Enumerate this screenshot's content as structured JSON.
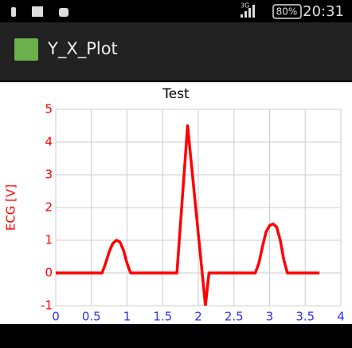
{
  "status_bar": {
    "network": "3G",
    "battery": "80%",
    "time": "20:31"
  },
  "app_bar": {
    "title": "Y_X_Plot"
  },
  "chart_data": {
    "type": "line",
    "title": "Test",
    "y_label": "ECG [V]",
    "x": [
      0,
      0.65,
      0.7,
      0.75,
      0.8,
      0.85,
      0.9,
      0.95,
      1.0,
      1.05,
      1.7,
      1.85,
      2.1,
      2.15,
      2.8,
      2.85,
      2.9,
      2.95,
      3.0,
      3.05,
      3.1,
      3.15,
      3.2,
      3.25,
      3.7
    ],
    "series": [
      {
        "name": "ECG",
        "color": "#ff0000",
        "values": [
          0,
          0,
          0.3,
          0.65,
          0.9,
          1.0,
          0.95,
          0.7,
          0.3,
          0,
          0,
          4.5,
          -1,
          0,
          0,
          0.3,
          0.8,
          1.25,
          1.45,
          1.5,
          1.4,
          1.0,
          0.4,
          0,
          0
        ]
      }
    ],
    "xlim": [
      0,
      4
    ],
    "ylim": [
      -1,
      5
    ],
    "xticks": [
      0,
      0.5,
      1,
      1.5,
      2,
      2.5,
      3,
      3.5,
      4
    ],
    "yticks": [
      -1,
      0,
      1,
      2,
      3,
      4,
      5
    ],
    "grid": true,
    "ytick_color": "#ff0000",
    "xtick_color": "#3030ff"
  }
}
